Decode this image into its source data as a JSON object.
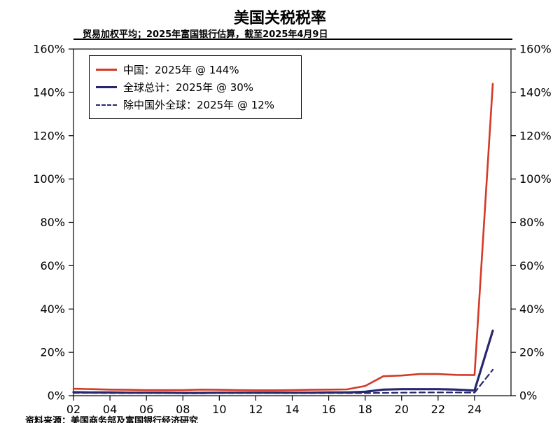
{
  "chart": {
    "title": "美国关税税率",
    "subtitle": "贸易加权平均；2025年富国银行估算，截至2025年4月9日",
    "source": "资料来源：美国商务部及富国银行经济研究"
  },
  "chart_data": {
    "type": "line",
    "title": "美国关税税率",
    "subtitle": "贸易加权平均；2025年富国银行估算，截至2025年4月9日",
    "source": "资料来源：美国商务部及富国银行经济研究",
    "xlabel": "",
    "ylabel": "",
    "grid": false,
    "legend_position": "top-left",
    "ylim": [
      0,
      160
    ],
    "y_tick_step": 20,
    "y_tick_labels": [
      "0%",
      "20%",
      "40%",
      "60%",
      "80%",
      "100%",
      "120%",
      "140%",
      "160%"
    ],
    "xlim": [
      2002,
      2026
    ],
    "x_ticks": [
      2002,
      2004,
      2006,
      2008,
      2010,
      2012,
      2014,
      2016,
      2018,
      2020,
      2022,
      2024
    ],
    "x_tick_labels": [
      "02",
      "04",
      "06",
      "08",
      "10",
      "12",
      "14",
      "16",
      "18",
      "20",
      "22",
      "24"
    ],
    "years": [
      2002,
      2003,
      2004,
      2005,
      2006,
      2007,
      2008,
      2009,
      2010,
      2011,
      2012,
      2013,
      2014,
      2015,
      2016,
      2017,
      2018,
      2019,
      2020,
      2021,
      2022,
      2023,
      2024,
      2025
    ],
    "series": [
      {
        "name": "china",
        "label": "中国：2025年 @ 144%",
        "color": "#d33a26",
        "style": "solid",
        "width": 2.6,
        "final_value_2025": 144,
        "values": [
          3.2,
          3.0,
          2.8,
          2.7,
          2.6,
          2.6,
          2.6,
          2.8,
          2.7,
          2.6,
          2.5,
          2.5,
          2.6,
          2.7,
          2.8,
          2.9,
          4.5,
          9.0,
          9.3,
          10.0,
          10.0,
          9.6,
          9.5,
          144
        ]
      },
      {
        "name": "global-total",
        "label": "全球总计：2025年 @ 30%",
        "color": "#27276f",
        "style": "solid",
        "width": 3.2,
        "final_value_2025": 30,
        "values": [
          1.6,
          1.5,
          1.5,
          1.4,
          1.4,
          1.4,
          1.3,
          1.3,
          1.4,
          1.4,
          1.4,
          1.4,
          1.4,
          1.4,
          1.5,
          1.5,
          1.8,
          2.8,
          3.0,
          3.0,
          3.0,
          2.8,
          2.4,
          30
        ]
      },
      {
        "name": "global-ex-china",
        "label": "除中国外全球：2025年 @ 12%",
        "color": "#27276f",
        "style": "dashed",
        "width": 2.2,
        "final_value_2025": 12,
        "values": [
          1.3,
          1.3,
          1.2,
          1.2,
          1.2,
          1.2,
          1.1,
          1.1,
          1.2,
          1.2,
          1.2,
          1.2,
          1.2,
          1.2,
          1.2,
          1.2,
          1.2,
          1.3,
          1.4,
          1.5,
          1.5,
          1.5,
          1.4,
          12
        ]
      }
    ]
  }
}
